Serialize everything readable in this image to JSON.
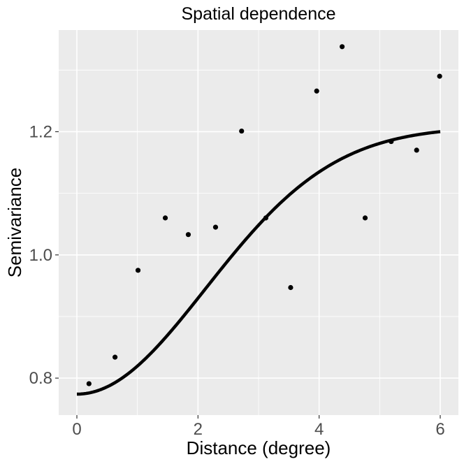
{
  "chart_data": {
    "type": "scatter",
    "title": "Spatial dependence",
    "xlabel": "Distance (degree)",
    "ylabel": "Semivariance",
    "xlim": [
      -0.3,
      6.3
    ],
    "ylim": [
      0.74,
      1.365
    ],
    "x_ticks": [
      0,
      2,
      4,
      6
    ],
    "x_tick_labels": [
      "0",
      "2",
      "4",
      "6"
    ],
    "y_ticks": [
      0.8,
      1.0,
      1.2
    ],
    "y_tick_labels": [
      "0.8",
      "1.0",
      "1.2"
    ],
    "grid": true,
    "legend": "none",
    "colors": {
      "panel_background": "#ebebeb",
      "grid": "#ffffff",
      "points": "#000000",
      "curve": "#000000"
    },
    "series": [
      {
        "type": "scatter",
        "points": [
          {
            "x": 0.2,
            "y": 0.791
          },
          {
            "x": 0.63,
            "y": 0.834
          },
          {
            "x": 1.01,
            "y": 0.975
          },
          {
            "x": 1.46,
            "y": 1.06
          },
          {
            "x": 1.84,
            "y": 1.033
          },
          {
            "x": 2.29,
            "y": 1.045
          },
          {
            "x": 2.72,
            "y": 1.201
          },
          {
            "x": 3.12,
            "y": 1.06
          },
          {
            "x": 3.53,
            "y": 0.947
          },
          {
            "x": 3.96,
            "y": 1.266
          },
          {
            "x": 4.38,
            "y": 1.338
          },
          {
            "x": 4.76,
            "y": 1.06
          },
          {
            "x": 5.19,
            "y": 1.184
          },
          {
            "x": 5.61,
            "y": 1.17
          },
          {
            "x": 5.99,
            "y": 1.29
          }
        ]
      },
      {
        "type": "line",
        "model": "gaussian",
        "nugget": 0.774,
        "partial_sill": 0.434,
        "range": 3.0,
        "x_from": 0.0,
        "x_to": 6.0
      }
    ]
  }
}
